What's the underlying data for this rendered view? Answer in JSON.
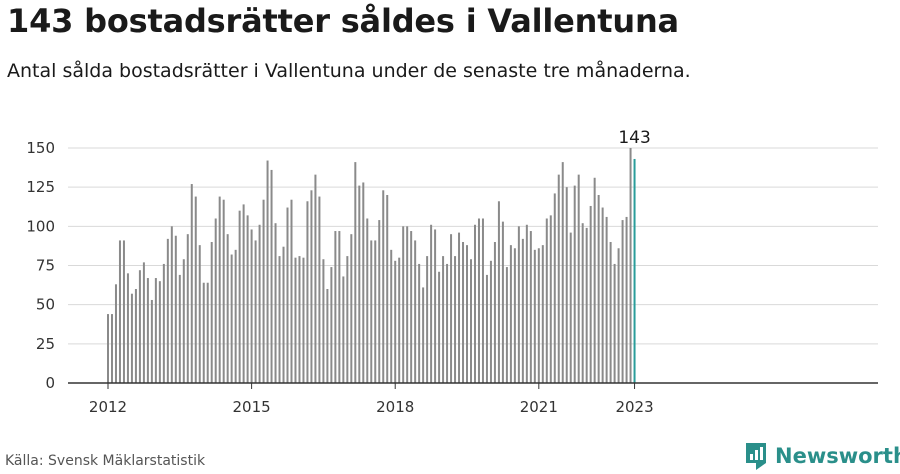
{
  "header": {
    "title": "143 bostadsrätter såldes i Vallentuna",
    "subtitle": "Antal sålda bostadsrätter i Vallentuna under de senaste tre månaderna."
  },
  "footer": {
    "source": "Källa: Svensk Mäklarstatistik",
    "brand": "Newsworthy"
  },
  "colors": {
    "bar": "#8a8a8a",
    "highlight": "#2a9d9a",
    "grid": "#d9d9d9",
    "axis": "#333333",
    "brand": "#2a8f8a"
  },
  "chart_data": {
    "type": "bar",
    "title": "143 bostadsrätter såldes i Vallentuna",
    "xlabel": "",
    "ylabel": "",
    "ylim": [
      0,
      150
    ],
    "yticks": [
      0,
      25,
      50,
      75,
      100,
      125,
      150
    ],
    "xticks": [
      "2012",
      "2015",
      "2018",
      "2021",
      "2023"
    ],
    "x_start": "2012-01",
    "x_step": "month",
    "grid": true,
    "highlight_label": "143",
    "values": [
      44,
      44,
      63,
      91,
      91,
      70,
      57,
      60,
      72,
      77,
      67,
      53,
      67,
      65,
      76,
      92,
      100,
      94,
      69,
      79,
      95,
      127,
      119,
      88,
      64,
      64,
      90,
      105,
      119,
      117,
      95,
      82,
      85,
      110,
      114,
      107,
      98,
      91,
      101,
      117,
      142,
      136,
      102,
      81,
      87,
      112,
      117,
      80,
      81,
      80,
      116,
      123,
      133,
      119,
      79,
      60,
      74,
      97,
      97,
      68,
      81,
      95,
      141,
      126,
      128,
      105,
      91,
      91,
      104,
      123,
      120,
      85,
      78,
      80,
      100,
      100,
      97,
      91,
      76,
      61,
      81,
      101,
      98,
      71,
      81,
      76,
      95,
      81,
      96,
      90,
      88,
      79,
      101,
      105,
      105,
      69,
      78,
      90,
      116,
      103,
      74,
      88,
      86,
      100,
      92,
      101,
      97,
      85,
      86,
      88,
      105,
      107,
      121,
      133,
      141,
      125,
      96,
      126,
      133,
      102,
      99,
      113,
      131,
      120,
      112,
      106,
      90,
      76,
      86,
      104,
      106,
      150,
      143
    ]
  }
}
